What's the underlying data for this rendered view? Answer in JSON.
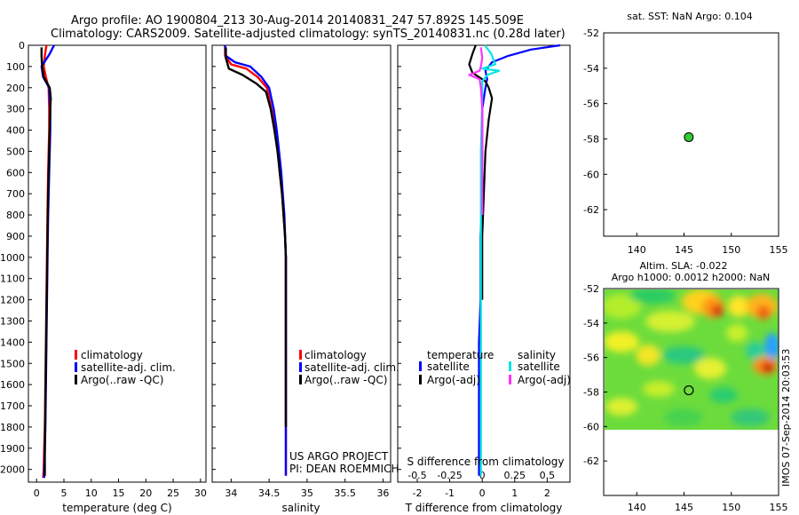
{
  "title_line1": "Argo profile: AO 1900804_213 30-Aug-2014 20140831_247 57.892S 145.509E",
  "title_line2": "Climatology: CARS2009. Satellite-adjusted climatology: synTS_20140831.nc (0.28d later)",
  "side_stamp": "IMOS 07-Sep-2014 20:03:53",
  "colors": {
    "climatology": "#ff0000",
    "satellite": "#0000ff",
    "argo": "#000000",
    "salinity_satellite": "#00e5e5",
    "salinity_argo": "#ff33ff",
    "sst_marker": "#33cc33"
  },
  "legend_profile": {
    "climatology": "climatology",
    "satellite": "satellite-adj. clim.",
    "argo": "Argo(..raw -QC)"
  },
  "legend_diff": {
    "temperature_header": "temperature",
    "salinity_header": "salinity",
    "satellite": "satellite",
    "argo": "Argo(-adj)"
  },
  "pi_note": {
    "line1": "US ARGO PROJECT",
    "line2": "PI: DEAN ROEMMICH"
  },
  "chart_data": [
    {
      "type": "line",
      "xlabel": "temperature (deg C)",
      "ylabel": "",
      "xlim": [
        -1.5,
        31
      ],
      "ylim": [
        2060,
        0
      ],
      "xticks": [
        0,
        5,
        10,
        15,
        20,
        25,
        30
      ],
      "yticks": [
        0,
        100,
        200,
        300,
        400,
        500,
        600,
        700,
        800,
        900,
        1000,
        1100,
        1200,
        1300,
        1400,
        1500,
        1600,
        1700,
        1800,
        1900,
        2000
      ],
      "series": [
        {
          "name": "climatology",
          "color": "#ff0000",
          "x": [
            1.8,
            1.5,
            1.3,
            1.7,
            2.2,
            2.3,
            2.3,
            2.2,
            2.1,
            2.0,
            1.9,
            1.8,
            1.7,
            1.6,
            1.5,
            1.4,
            1.3,
            1.2
          ],
          "y": [
            0,
            50,
            100,
            150,
            200,
            300,
            400,
            500,
            600,
            800,
            1000,
            1200,
            1400,
            1600,
            1800,
            1900,
            2000,
            2040
          ]
        },
        {
          "name": "satellite-adj. clim.",
          "color": "#0000ff",
          "x": [
            3.2,
            2.4,
            0.9,
            1.2,
            2.3,
            2.5,
            2.5,
            2.4,
            2.3,
            2.1,
            2.0,
            1.9,
            1.8,
            1.7,
            1.6,
            1.5,
            1.4,
            1.4
          ],
          "y": [
            0,
            40,
            100,
            150,
            200,
            300,
            400,
            500,
            600,
            800,
            1000,
            1200,
            1400,
            1600,
            1800,
            1900,
            2000,
            2040
          ]
        },
        {
          "name": "Argo(..raw -QC)",
          "color": "#000000",
          "x": [
            0.9,
            0.9,
            1.0,
            1.3,
            2.4,
            2.6,
            2.5,
            2.4,
            2.3,
            2.1,
            2.0,
            1.9,
            1.8,
            1.7,
            1.6,
            1.5,
            1.5
          ],
          "y": [
            10,
            50,
            100,
            150,
            200,
            250,
            300,
            400,
            500,
            700,
            900,
            1100,
            1300,
            1500,
            1700,
            1900,
            2030
          ]
        }
      ]
    },
    {
      "type": "line",
      "xlabel": "salinity",
      "ylabel": "",
      "xlim": [
        33.75,
        36.1
      ],
      "ylim": [
        2060,
        0
      ],
      "xticks": [
        34,
        34.5,
        35,
        35.5,
        36
      ],
      "series": [
        {
          "name": "climatology",
          "color": "#ff0000",
          "x": [
            33.92,
            33.92,
            34.0,
            34.2,
            34.35,
            34.47,
            34.53,
            34.58,
            34.62,
            34.64,
            34.67,
            34.69,
            34.71,
            34.72,
            34.72,
            34.72,
            34.72,
            34.72,
            34.72
          ],
          "y": [
            0,
            50,
            90,
            110,
            150,
            200,
            300,
            400,
            500,
            600,
            700,
            800,
            900,
            1000,
            1200,
            1400,
            1600,
            1800,
            2030
          ]
        },
        {
          "name": "satellite-adj. clim.",
          "color": "#0000ff",
          "x": [
            33.92,
            33.93,
            34.05,
            34.25,
            34.4,
            34.5,
            34.56,
            34.6,
            34.63,
            34.66,
            34.68,
            34.7,
            34.71,
            34.72,
            34.72,
            34.72,
            34.72,
            34.72
          ],
          "y": [
            0,
            50,
            80,
            100,
            150,
            200,
            300,
            400,
            500,
            600,
            700,
            800,
            900,
            1000,
            1200,
            1400,
            1600,
            2030
          ]
        },
        {
          "name": "Argo(..raw -QC)",
          "color": "#000000",
          "x": [
            33.93,
            33.93,
            33.97,
            34.15,
            34.33,
            34.46,
            34.52,
            34.57,
            34.61,
            34.64,
            34.67,
            34.69,
            34.71,
            34.72,
            34.72,
            34.72,
            34.72,
            34.72
          ],
          "y": [
            10,
            60,
            110,
            140,
            180,
            220,
            300,
            400,
            500,
            600,
            700,
            800,
            900,
            1000,
            1200,
            1400,
            1600,
            1800
          ]
        }
      ]
    },
    {
      "type": "line",
      "xlabel": "T difference from climatology",
      "top_label": "S difference from climatology",
      "xlim": [
        -2.6,
        2.7
      ],
      "ylim": [
        2060,
        0
      ],
      "xticks": [
        -2,
        -1,
        0,
        1,
        2
      ],
      "secondary_xticks": [
        -0.5,
        -0.25,
        0,
        0.25,
        0.5
      ],
      "secondary_xtick_labels": [
        "-0.5",
        "-0.25",
        "0",
        "0.25",
        "0.5"
      ],
      "secondary_xlim": [
        -0.65,
        0.675
      ],
      "series": [
        {
          "name": "satellite",
          "group": "temperature",
          "color": "#0000ff",
          "x": [
            2.4,
            1.5,
            0.8,
            0.3,
            0.1,
            0.15,
            0.1,
            0.0,
            0.0,
            0.0,
            -0.05,
            -0.05,
            -0.1,
            -0.1,
            -0.1,
            -0.1
          ],
          "y": [
            0,
            20,
            50,
            80,
            120,
            160,
            200,
            300,
            500,
            700,
            900,
            1200,
            1400,
            1700,
            1900,
            2030
          ]
        },
        {
          "name": "Argo(-adj)",
          "group": "temperature",
          "color": "#000000",
          "x": [
            -0.2,
            -0.3,
            -0.4,
            -0.3,
            0.1,
            0.2,
            0.3,
            0.2,
            0.1,
            0.05,
            0.0,
            0.0,
            0.0
          ],
          "y": [
            0,
            40,
            90,
            130,
            170,
            200,
            250,
            350,
            500,
            700,
            900,
            1100,
            1200
          ]
        },
        {
          "name": "satellite",
          "group": "salinity",
          "color": "#00e5e5",
          "x": [
            0.02,
            0.07,
            0.1,
            0.0,
            0.13,
            0.04,
            0.0,
            0.0,
            -0.01,
            -0.01,
            -0.01,
            -0.01,
            -0.01
          ],
          "y": [
            0,
            40,
            90,
            110,
            120,
            140,
            170,
            250,
            500,
            800,
            1200,
            1600,
            2030
          ]
        },
        {
          "name": "Argo(-adj)",
          "group": "salinity",
          "color": "#ff33ff",
          "x": [
            -0.01,
            0.0,
            -0.01,
            -0.02,
            -0.1,
            -0.02,
            -0.01,
            0.0,
            0.0,
            0.0,
            0.0
          ],
          "y": [
            10,
            60,
            100,
            120,
            140,
            160,
            200,
            300,
            500,
            700,
            800
          ]
        }
      ]
    },
    {
      "type": "scatter",
      "title": "sat. SST: NaN Argo: 0.104",
      "xlim": [
        136.5,
        155
      ],
      "ylim": [
        -63.5,
        -52
      ],
      "xticks": [
        140,
        145,
        150,
        155
      ],
      "yticks": [
        -52,
        -54,
        -56,
        -58,
        -60,
        -62
      ],
      "points": [
        {
          "x": 145.5,
          "y": -57.9
        }
      ]
    },
    {
      "type": "heatmap",
      "title_line1": "Altim. SLA: -0.022",
      "title_line2": "Argo h1000: 0.0012 h2000: NaN",
      "xlim": [
        136.5,
        155
      ],
      "ylim": [
        -64,
        -52
      ],
      "data_ylim": [
        -60,
        -52
      ],
      "xticks": [
        140,
        145,
        150,
        155
      ],
      "yticks": [
        -52,
        -54,
        -56,
        -58,
        -60,
        -62
      ],
      "marker": {
        "x": 145.5,
        "y": -57.9
      }
    }
  ]
}
